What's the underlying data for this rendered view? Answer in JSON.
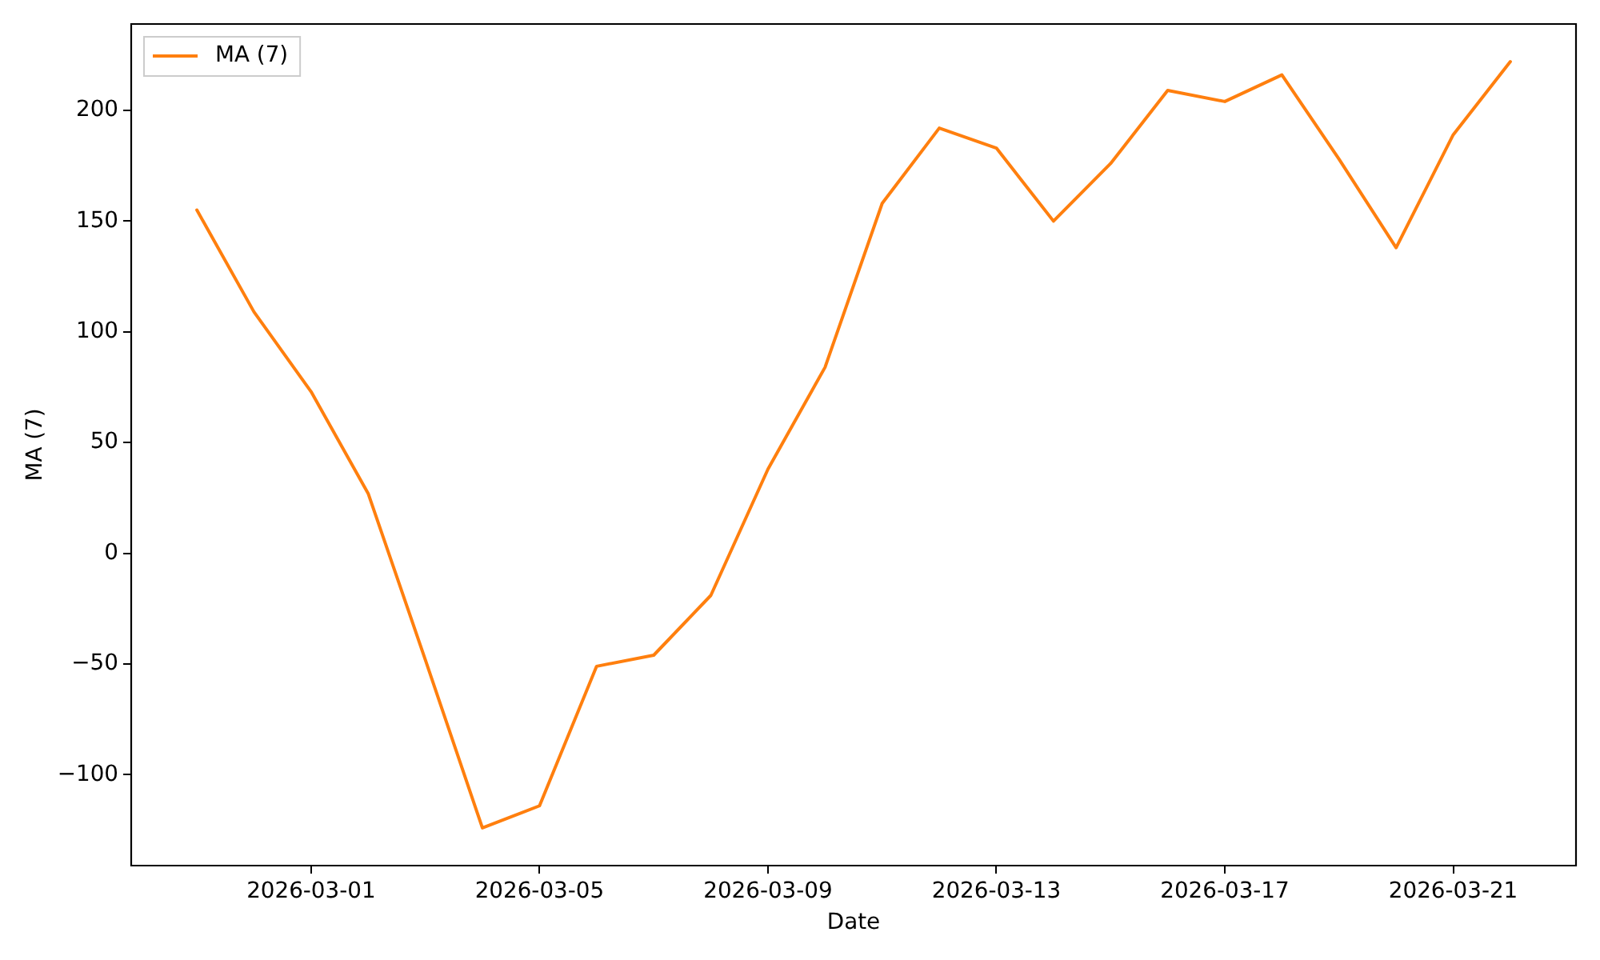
{
  "chart_data": {
    "type": "line",
    "xlabel": "Date",
    "ylabel": "MA (7)",
    "x": [
      "2026-02-27",
      "2026-02-28",
      "2026-03-01",
      "2026-03-02",
      "2026-03-03",
      "2026-03-04",
      "2026-03-05",
      "2026-03-06",
      "2026-03-07",
      "2026-03-08",
      "2026-03-09",
      "2026-03-10",
      "2026-03-11",
      "2026-03-12",
      "2026-03-13",
      "2026-03-14",
      "2026-03-15",
      "2026-03-16",
      "2026-03-17",
      "2026-03-18",
      "2026-03-19",
      "2026-03-20",
      "2026-03-21",
      "2026-03-22"
    ],
    "series": [
      {
        "name": "MA (7)",
        "color": "#ff7f0e",
        "values": [
          155,
          109,
          73,
          27,
          -48,
          -124,
          -114,
          -51,
          -46,
          -19,
          38,
          84,
          158,
          192,
          183,
          150,
          176,
          209,
          204,
          216,
          178,
          138,
          189,
          222
        ]
      }
    ],
    "xlim": [
      "2026-02-25T20:24",
      "2026-03-23T03:36"
    ],
    "ylim": [
      -141,
      239
    ],
    "xticks": [
      "2026-03-01",
      "2026-03-05",
      "2026-03-09",
      "2026-03-13",
      "2026-03-17",
      "2026-03-21"
    ],
    "yticks": [
      {
        "value": -100,
        "label": "−100"
      },
      {
        "value": -50,
        "label": "−50"
      },
      0,
      50,
      100,
      150,
      200
    ],
    "legend": "top left"
  }
}
